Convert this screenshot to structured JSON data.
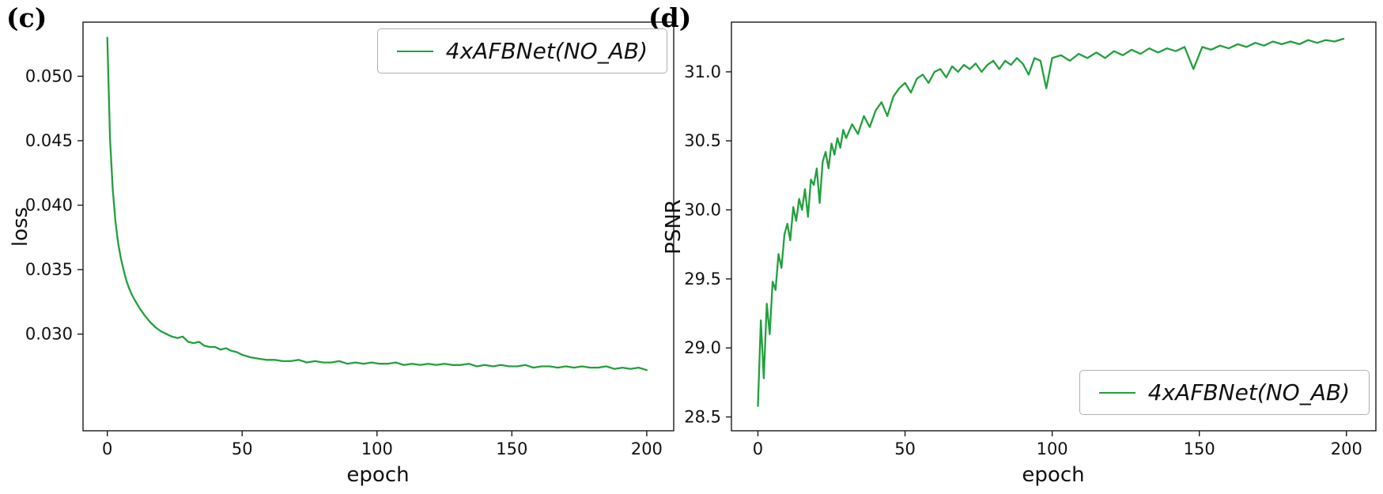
{
  "figure": {
    "background": "#ffffff"
  },
  "chart_data": [
    {
      "name": "loss",
      "type": "line",
      "panel_label": "(c)",
      "legend": "4xAFBNet(NO_AB)",
      "legend_position": "upper right",
      "xlabel": "epoch",
      "ylabel": "loss",
      "line_color": "#22a03e",
      "grid": false,
      "xlim": [
        -9,
        210
      ],
      "ylim": [
        0.0225,
        0.0542
      ],
      "xticks": [
        0,
        50,
        100,
        150,
        200
      ],
      "xtick_labels": [
        "0",
        "50",
        "100",
        "150",
        "200"
      ],
      "yticks": [
        0.03,
        0.035,
        0.04,
        0.045,
        0.05
      ],
      "ytick_labels": [
        "0.030",
        "0.035",
        "0.040",
        "0.045",
        "0.050"
      ],
      "x": [
        0,
        1,
        2,
        3,
        4,
        5,
        6,
        7,
        8,
        9,
        10,
        12,
        14,
        16,
        18,
        20,
        22,
        24,
        26,
        28,
        30,
        32,
        34,
        36,
        38,
        40,
        42,
        44,
        46,
        48,
        50,
        53,
        56,
        59,
        62,
        65,
        68,
        71,
        74,
        77,
        80,
        83,
        86,
        89,
        92,
        95,
        98,
        101,
        104,
        107,
        110,
        113,
        116,
        119,
        122,
        125,
        128,
        131,
        134,
        137,
        140,
        143,
        146,
        149,
        152,
        155,
        158,
        161,
        164,
        167,
        170,
        173,
        176,
        179,
        182,
        185,
        188,
        191,
        194,
        197,
        200
      ],
      "y": [
        0.053,
        0.0452,
        0.0413,
        0.0388,
        0.0371,
        0.0359,
        0.035,
        0.0342,
        0.0336,
        0.0331,
        0.0327,
        0.032,
        0.0314,
        0.0309,
        0.0305,
        0.0302,
        0.03,
        0.0298,
        0.0297,
        0.0298,
        0.0294,
        0.0293,
        0.0294,
        0.0291,
        0.029,
        0.029,
        0.0288,
        0.0289,
        0.0287,
        0.0286,
        0.0284,
        0.0282,
        0.0281,
        0.028,
        0.028,
        0.0279,
        0.0279,
        0.028,
        0.0278,
        0.0279,
        0.0278,
        0.0278,
        0.0279,
        0.0277,
        0.0278,
        0.0277,
        0.0278,
        0.0277,
        0.0277,
        0.0278,
        0.0276,
        0.0277,
        0.0276,
        0.0277,
        0.0276,
        0.0277,
        0.0276,
        0.0276,
        0.0277,
        0.0275,
        0.0276,
        0.0275,
        0.0276,
        0.0275,
        0.0275,
        0.0276,
        0.0274,
        0.0275,
        0.0275,
        0.0274,
        0.0275,
        0.0274,
        0.0275,
        0.0274,
        0.0274,
        0.0275,
        0.0273,
        0.0274,
        0.0273,
        0.0274,
        0.0272
      ]
    },
    {
      "name": "psnr",
      "type": "line",
      "panel_label": "(d)",
      "legend": "4xAFBNet(NO_AB)",
      "legend_position": "lower right",
      "xlabel": "epoch",
      "ylabel": "PSNR",
      "line_color": "#22a03e",
      "grid": false,
      "xlim": [
        -9,
        210
      ],
      "ylim": [
        28.4,
        31.36
      ],
      "xticks": [
        0,
        50,
        100,
        150,
        200
      ],
      "xtick_labels": [
        "0",
        "50",
        "100",
        "150",
        "200"
      ],
      "yticks": [
        28.5,
        29.0,
        29.5,
        30.0,
        30.5,
        31.0
      ],
      "ytick_labels": [
        "28.5",
        "29.0",
        "29.5",
        "30.0",
        "30.5",
        "31.0"
      ],
      "x": [
        0,
        1,
        2,
        3,
        4,
        5,
        6,
        7,
        8,
        9,
        10,
        11,
        12,
        13,
        14,
        15,
        16,
        17,
        18,
        19,
        20,
        21,
        22,
        23,
        24,
        25,
        26,
        27,
        28,
        29,
        30,
        32,
        34,
        36,
        38,
        40,
        42,
        44,
        46,
        48,
        50,
        52,
        54,
        56,
        58,
        60,
        62,
        64,
        66,
        68,
        70,
        72,
        74,
        76,
        78,
        80,
        82,
        84,
        86,
        88,
        90,
        92,
        94,
        96,
        98,
        100,
        103,
        106,
        109,
        112,
        115,
        118,
        121,
        124,
        127,
        130,
        133,
        136,
        139,
        142,
        145,
        148,
        151,
        154,
        157,
        160,
        163,
        166,
        169,
        172,
        175,
        178,
        181,
        184,
        187,
        190,
        193,
        196,
        199
      ],
      "y": [
        28.58,
        29.2,
        28.78,
        29.32,
        29.1,
        29.48,
        29.42,
        29.68,
        29.58,
        29.82,
        29.9,
        29.78,
        30.02,
        29.92,
        30.08,
        30.0,
        30.15,
        29.95,
        30.22,
        30.18,
        30.3,
        30.05,
        30.35,
        30.42,
        30.3,
        30.48,
        30.4,
        30.52,
        30.45,
        30.58,
        30.52,
        30.62,
        30.55,
        30.68,
        30.6,
        30.72,
        30.78,
        30.68,
        30.82,
        30.88,
        30.92,
        30.85,
        30.95,
        30.98,
        30.92,
        31.0,
        31.02,
        30.96,
        31.04,
        31.0,
        31.05,
        31.02,
        31.06,
        31.0,
        31.05,
        31.08,
        31.02,
        31.08,
        31.05,
        31.1,
        31.06,
        30.98,
        31.1,
        31.08,
        30.88,
        31.1,
        31.12,
        31.08,
        31.13,
        31.1,
        31.14,
        31.1,
        31.15,
        31.12,
        31.16,
        31.13,
        31.17,
        31.14,
        31.17,
        31.15,
        31.18,
        31.02,
        31.18,
        31.16,
        31.19,
        31.17,
        31.2,
        31.18,
        31.21,
        31.19,
        31.22,
        31.2,
        31.22,
        31.2,
        31.23,
        31.21,
        31.23,
        31.22,
        31.24
      ]
    }
  ]
}
